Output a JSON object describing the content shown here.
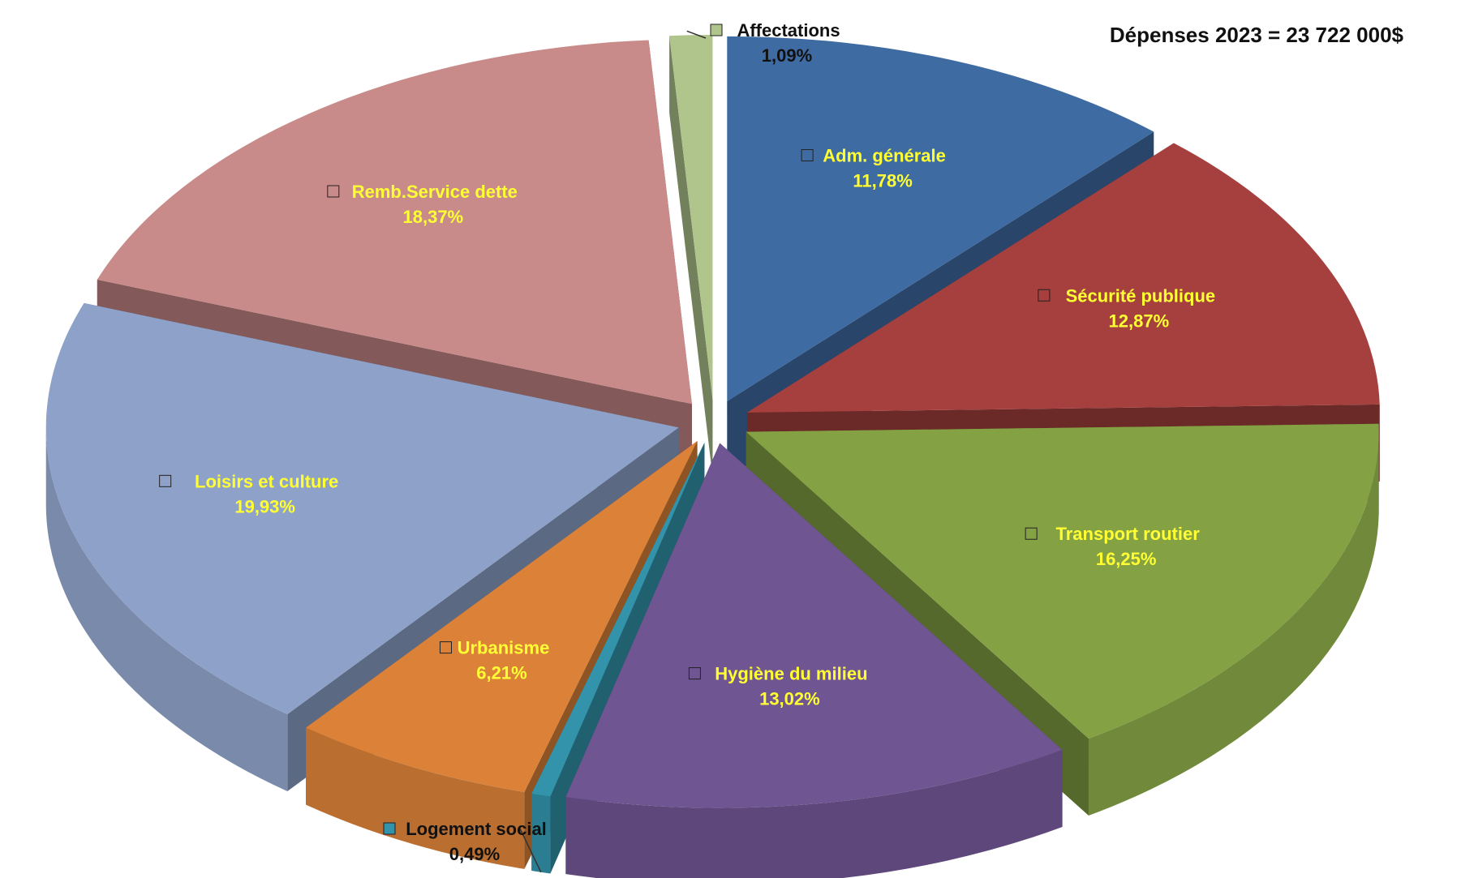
{
  "chart_data": {
    "type": "pie",
    "title": "Dépenses 2023  = 23 722 000$",
    "legend": "none",
    "series": [
      {
        "label": "Adm. générale",
        "value": 11.78,
        "value_label": "11,78%",
        "color": "#3f6ba3",
        "label_position": "inside"
      },
      {
        "label": "Sécurité publique",
        "value": 12.87,
        "value_label": "12,87%",
        "color": "#a5403e",
        "label_position": "inside"
      },
      {
        "label": "Transport routier",
        "value": 16.25,
        "value_label": "16,25%",
        "color": "#84a144",
        "label_position": "inside"
      },
      {
        "label": "Hygiène du milieu",
        "value": 13.02,
        "value_label": "13,02%",
        "color": "#6f5591",
        "label_position": "inside"
      },
      {
        "label": "Logement social",
        "value": 0.49,
        "value_label": "0,49%",
        "color": "#3393aa",
        "label_position": "outside"
      },
      {
        "label": "Urbanisme",
        "value": 6.21,
        "value_label": "6,21%",
        "color": "#db8138",
        "label_position": "inside"
      },
      {
        "label": "Loisirs et culture",
        "value": 19.93,
        "value_label": "19,93%",
        "color": "#8ea2c9",
        "label_position": "inside"
      },
      {
        "label": "Remb.Service dette",
        "value": 18.37,
        "value_label": "18,37%",
        "color": "#c98b89",
        "label_position": "inside"
      },
      {
        "label": "Affectations",
        "value": 1.09,
        "value_label": "1,09%",
        "color": "#b0c58c",
        "label_position": "outside"
      }
    ]
  }
}
